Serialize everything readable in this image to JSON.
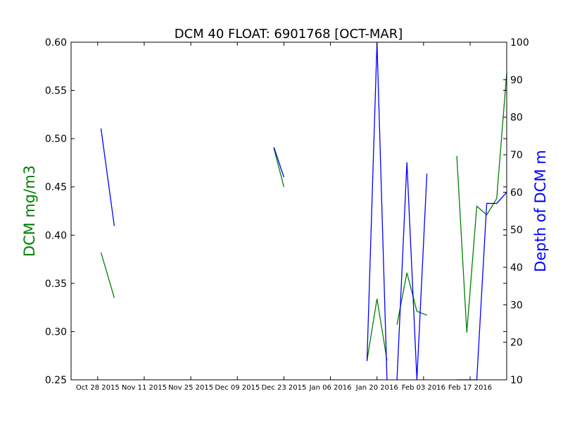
{
  "chart_data": {
    "type": "line",
    "title": "DCM 40 FLOAT: 6901768 [OCT-MAR]",
    "xlabel": "",
    "ylabel_left": "DCM mg/m3",
    "ylabel_right": "Depth of DCM m",
    "ylabel_left_color": "#008000",
    "ylabel_right_color": "#0000ff",
    "x_type": "date",
    "xlim": [
      "2015-10-20",
      "2016-02-28"
    ],
    "x_ticks": [
      "2015-10-28",
      "2015-11-11",
      "2015-11-25",
      "2015-12-09",
      "2015-12-23",
      "2016-01-06",
      "2016-01-20",
      "2016-02-03",
      "2016-02-17"
    ],
    "x_tick_labels": [
      "Oct 28 2015",
      "Nov 11 2015",
      "Nov 25 2015",
      "Dec 09 2015",
      "Dec 23 2015",
      "Jan 06 2016",
      "Jan 20 2016",
      "Feb 03 2016",
      "Feb 17 2016"
    ],
    "ylim_left": [
      0.25,
      0.6
    ],
    "y_ticks_left": [
      "0.25",
      "0.30",
      "0.35",
      "0.40",
      "0.45",
      "0.50",
      "0.55",
      "0.60"
    ],
    "ylim_right": [
      10,
      100
    ],
    "y_ticks_right": [
      "10",
      "20",
      "30",
      "40",
      "50",
      "60",
      "70",
      "80",
      "90",
      "100"
    ],
    "grid": false,
    "series": [
      {
        "axis": "left",
        "color": "#008000",
        "segments": [
          [
            [
              "2015-10-29",
              0.382
            ],
            [
              "2015-11-02",
              0.335
            ]
          ],
          [
            [
              "2015-12-20",
              0.49
            ],
            [
              "2015-12-23",
              0.45
            ]
          ],
          [
            [
              "2016-01-17",
              0.27
            ],
            [
              "2016-01-20",
              0.334
            ],
            [
              "2016-01-23",
              0.27
            ]
          ],
          [
            [
              "2016-01-26",
              0.307
            ],
            [
              "2016-01-29",
              0.361
            ],
            [
              "2016-02-01",
              0.321
            ],
            [
              "2016-02-04",
              0.317
            ]
          ],
          [
            [
              "2016-02-13",
              0.482
            ],
            [
              "2016-02-16",
              0.299
            ],
            [
              "2016-02-19",
              0.43
            ],
            [
              "2016-02-22",
              0.421
            ],
            [
              "2016-02-25",
              0.438
            ],
            [
              "2016-02-28",
              0.568
            ]
          ]
        ]
      },
      {
        "axis": "right",
        "color": "#0000ff",
        "segments": [
          [
            [
              "2015-10-29",
              77
            ],
            [
              "2015-11-02",
              51
            ]
          ],
          [
            [
              "2015-12-20",
              72
            ],
            [
              "2015-12-23",
              64
            ]
          ],
          [
            [
              "2016-01-17",
              15
            ],
            [
              "2016-01-20",
              100
            ],
            [
              "2016-01-23",
              10
            ]
          ],
          [
            [
              "2016-01-26",
              10
            ],
            [
              "2016-01-29",
              68
            ],
            [
              "2016-02-01",
              10
            ],
            [
              "2016-02-04",
              65
            ]
          ],
          [
            [
              "2016-02-13",
              10
            ],
            [
              "2016-02-16",
              10
            ],
            [
              "2016-02-19",
              10
            ],
            [
              "2016-02-22",
              57
            ],
            [
              "2016-02-25",
              57
            ],
            [
              "2016-02-28",
              60
            ]
          ]
        ]
      }
    ]
  }
}
